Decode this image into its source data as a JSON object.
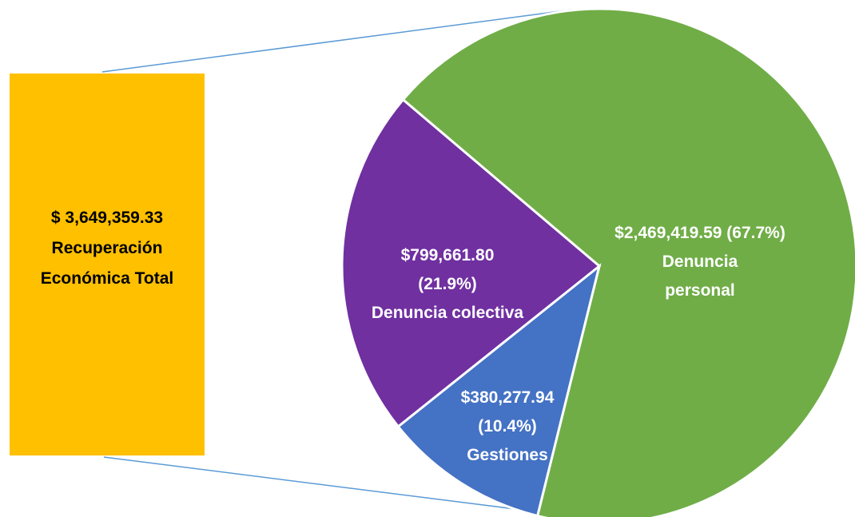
{
  "chart_data": {
    "type": "pie",
    "categories": [
      "Denuncia personal",
      "Gestiones",
      "Denuncia colectiva"
    ],
    "values": [
      2469419.59,
      380277.94,
      799661.8
    ],
    "value_labels": [
      "$2,469,419.59",
      "$380,277.94",
      "$799,661.80"
    ],
    "percent_labels": [
      "(67.7%)",
      "(10.4%)",
      "(21.9%)"
    ],
    "colors": [
      "#70ad47",
      "#4472c4",
      "#7030a0"
    ],
    "total": 3649359.33,
    "total_label": "$ 3,649,359.33",
    "total_caption": "Recuperación Económica Total",
    "total_color": "#ffc000"
  }
}
